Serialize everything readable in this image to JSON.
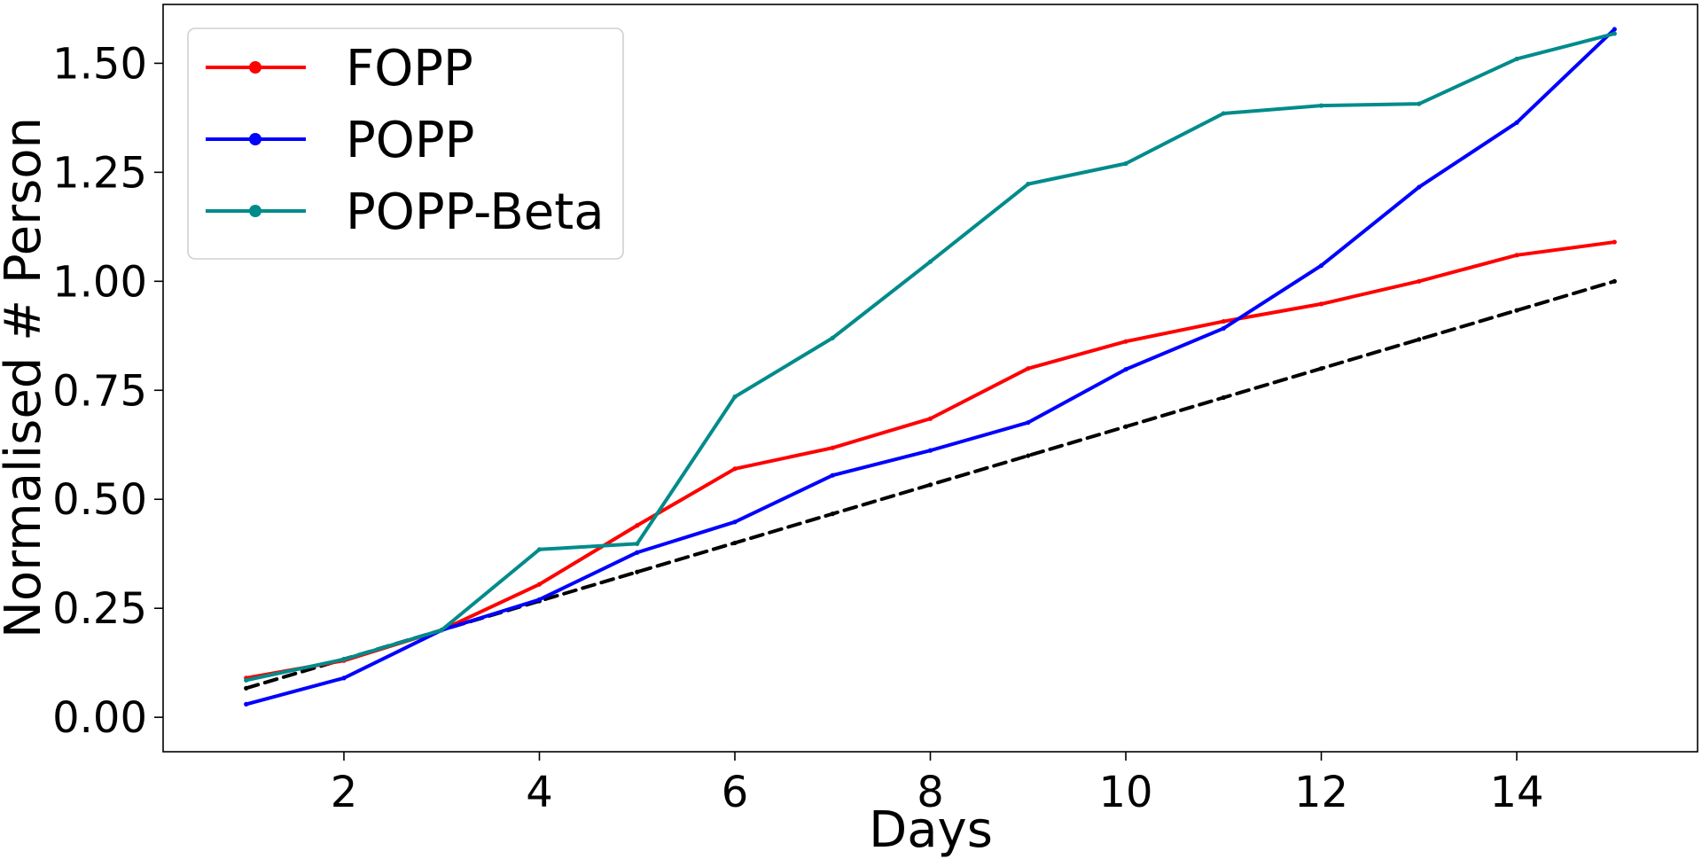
{
  "chart_data": {
    "type": "line",
    "title": "",
    "xlabel": "Days",
    "ylabel": "Normalised # Person",
    "xlim": [
      0.15,
      15.85
    ],
    "ylim": [
      -0.079,
      1.635
    ],
    "xticks": [
      2,
      4,
      6,
      8,
      10,
      12,
      14
    ],
    "yticks": [
      0.0,
      0.25,
      0.5,
      0.75,
      1.0,
      1.25,
      1.5
    ],
    "ytick_labels": [
      "0.00",
      "0.25",
      "0.50",
      "0.75",
      "1.00",
      "1.25",
      "1.50"
    ],
    "grid": false,
    "legend_position": "upper-left",
    "x": [
      1,
      2,
      3,
      4,
      5,
      6,
      7,
      8,
      9,
      10,
      11,
      12,
      13,
      14,
      15
    ],
    "series": [
      {
        "name": "FOPP",
        "color": "#ff0000",
        "style": "solid",
        "values": [
          0.09,
          0.13,
          0.2,
          0.305,
          0.44,
          0.57,
          0.618,
          0.685,
          0.8,
          0.862,
          0.908,
          0.948,
          1.0,
          1.06,
          1.09
        ]
      },
      {
        "name": "POPP",
        "color": "#0000ff",
        "style": "solid",
        "values": [
          0.03,
          0.09,
          0.2,
          0.27,
          0.378,
          0.448,
          0.555,
          0.612,
          0.676,
          0.798,
          0.892,
          1.036,
          1.216,
          1.364,
          1.578
        ]
      },
      {
        "name": "POPP-Beta",
        "color": "#008b8b",
        "style": "solid",
        "values": [
          0.085,
          0.133,
          0.2,
          0.385,
          0.398,
          0.735,
          0.87,
          1.045,
          1.223,
          1.27,
          1.385,
          1.403,
          1.407,
          1.51,
          1.568
        ]
      },
      {
        "name": "",
        "color": "#000000",
        "style": "dashed",
        "values": [
          0.0667,
          0.1333,
          0.2,
          0.2667,
          0.3333,
          0.4,
          0.4667,
          0.5333,
          0.6,
          0.6667,
          0.7333,
          0.8,
          0.8667,
          0.9333,
          1.0
        ]
      }
    ]
  }
}
